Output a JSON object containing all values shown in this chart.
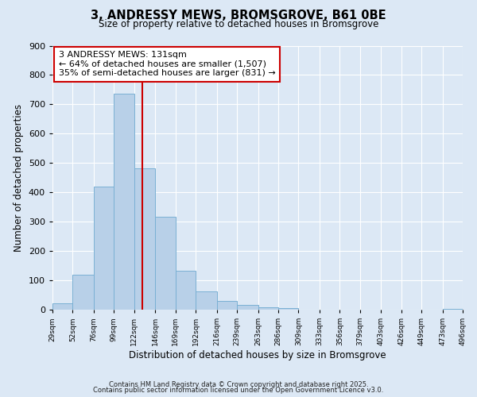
{
  "title": "3, ANDRESSY MEWS, BROMSGROVE, B61 0BE",
  "subtitle": "Size of property relative to detached houses in Bromsgrove",
  "xlabel": "Distribution of detached houses by size in Bromsgrove",
  "ylabel": "Number of detached properties",
  "bar_color": "#b8d0e8",
  "bar_edge_color": "#7ab0d4",
  "background_color": "#dce8f5",
  "grid_color": "#ffffff",
  "vline_x": 131,
  "vline_color": "#cc0000",
  "bin_edges": [
    29,
    52,
    76,
    99,
    122,
    146,
    169,
    192,
    216,
    239,
    263,
    286,
    309,
    333,
    356,
    379,
    403,
    426,
    449,
    473,
    496
  ],
  "bin_counts": [
    22,
    120,
    420,
    735,
    483,
    318,
    132,
    63,
    30,
    15,
    8,
    5,
    0,
    0,
    0,
    0,
    0,
    0,
    0,
    3
  ],
  "tick_labels": [
    "29sqm",
    "52sqm",
    "76sqm",
    "99sqm",
    "122sqm",
    "146sqm",
    "169sqm",
    "192sqm",
    "216sqm",
    "239sqm",
    "263sqm",
    "286sqm",
    "309sqm",
    "333sqm",
    "356sqm",
    "379sqm",
    "403sqm",
    "426sqm",
    "449sqm",
    "473sqm",
    "496sqm"
  ],
  "ylim": [
    0,
    900
  ],
  "yticks": [
    0,
    100,
    200,
    300,
    400,
    500,
    600,
    700,
    800,
    900
  ],
  "annotation_title": "3 ANDRESSY MEWS: 131sqm",
  "annotation_line1": "← 64% of detached houses are smaller (1,507)",
  "annotation_line2": "35% of semi-detached houses are larger (831) →",
  "annotation_box_color": "#ffffff",
  "annotation_box_edge": "#cc0000",
  "footer1": "Contains HM Land Registry data © Crown copyright and database right 2025.",
  "footer2": "Contains public sector information licensed under the Open Government Licence v3.0."
}
